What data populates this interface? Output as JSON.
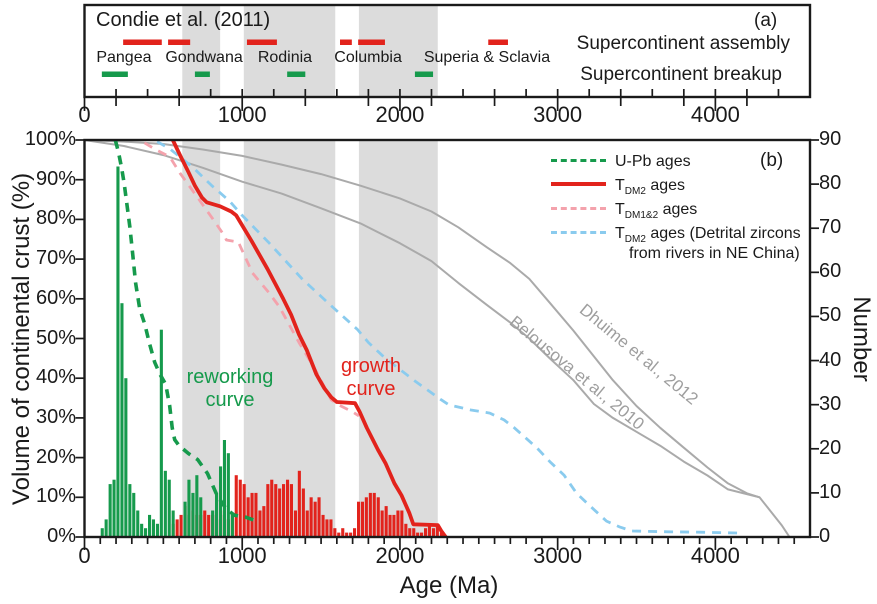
{
  "colors": {
    "red": "#e2231c",
    "green": "#169a4c",
    "pink": "#f4a2ac",
    "blue": "#8acbee",
    "gray_curve": "#aaaaaa",
    "gray_label": "#9e9e9e",
    "band": "#dcdcdc",
    "axis": "#1a1a1a"
  },
  "panel_a": {
    "corner_label": "(a)",
    "title": "Condie et al. (2011)",
    "legend": {
      "assembly": "Supercontinent assembly",
      "breakup": "Supercontinent breakup"
    },
    "supercontinents": [
      {
        "name": "Pangea",
        "label_age": 250
      },
      {
        "name": "Gondwana",
        "label_age": 758
      },
      {
        "name": "Rodinia",
        "label_age": 1271
      },
      {
        "name": "Columbia",
        "label_age": 1798
      },
      {
        "name": "Superia & Sclavia",
        "label_age": 2552
      }
    ],
    "assembly_intervals_ma": [
      [
        245,
        490
      ],
      [
        530,
        670
      ],
      [
        1030,
        1220
      ],
      [
        1620,
        1695
      ],
      [
        1735,
        1905
      ],
      [
        2560,
        2685
      ]
    ],
    "breakup_intervals_ma": [
      [
        110,
        275
      ],
      [
        700,
        795
      ],
      [
        1285,
        1400
      ],
      [
        2095,
        2210
      ]
    ]
  },
  "panel_b": {
    "corner_label": "(b)",
    "legend": [
      {
        "label": "U-Pb ages"
      },
      {
        "prefix": "T",
        "sub": "DM2",
        "suffix": " ages"
      },
      {
        "prefix": "T",
        "sub": "DM1&2",
        "suffix": " ages"
      },
      {
        "prefix": "T",
        "sub": "DM2",
        "suffix": " ages (Detrital zircons",
        "line2": "from rivers in NE China)"
      }
    ],
    "annotations": {
      "reworking": {
        "line1": "reworking",
        "line2": "curve"
      },
      "growth": {
        "line1": "growth",
        "line2": "curve"
      },
      "dhuime": "Dhuime et al., 2012",
      "belousova": "Belousova et al., 2010"
    }
  },
  "chart_data": {
    "type": "composite",
    "xlabel": "Age (Ma)",
    "x_range": [
      0,
      4600
    ],
    "age_ticks": [
      "0",
      "1000",
      "2000",
      "3000",
      "4000"
    ],
    "y_left": {
      "label": "Volume of continental crust (%)",
      "range": [
        0,
        100
      ],
      "ticks": [
        "0%",
        "10%",
        "20%",
        "30%",
        "40%",
        "50%",
        "60%",
        "70%",
        "80%",
        "90%",
        "100%"
      ]
    },
    "y_right": {
      "label": "Number",
      "range": [
        0,
        90
      ],
      "ticks": [
        "0",
        "10",
        "20",
        "30",
        "40",
        "50",
        "60",
        "70",
        "80",
        "90"
      ]
    },
    "shaded_bands_ma": [
      [
        620,
        860
      ],
      [
        1010,
        1590
      ],
      [
        1740,
        2240
      ]
    ],
    "series": [
      {
        "name": "U-Pb ages (reworking curve)",
        "type": "line",
        "style": "dashed",
        "color_key": "green",
        "points": [
          [
            195,
            100
          ],
          [
            215,
            97
          ],
          [
            235,
            93
          ],
          [
            252,
            89
          ],
          [
            268,
            84
          ],
          [
            288,
            78
          ],
          [
            306,
            71
          ],
          [
            324,
            64
          ],
          [
            350,
            57.5
          ],
          [
            383,
            53.5
          ],
          [
            410,
            49
          ],
          [
            445,
            44
          ],
          [
            478,
            41
          ],
          [
            515,
            38.5
          ],
          [
            540,
            33
          ],
          [
            556,
            27.5
          ],
          [
            572,
            24.5
          ],
          [
            600,
            23
          ],
          [
            660,
            21
          ],
          [
            718,
            19.5
          ],
          [
            780,
            16
          ],
          [
            840,
            10.5
          ],
          [
            900,
            7
          ],
          [
            950,
            5.5
          ],
          [
            1020,
            5
          ],
          [
            1090,
            4
          ]
        ]
      },
      {
        "name": "TDM2 ages (growth curve)",
        "type": "line",
        "style": "solid",
        "color_key": "red",
        "points": [
          [
            560,
            100
          ],
          [
            608,
            96
          ],
          [
            658,
            92
          ],
          [
            700,
            88.5
          ],
          [
            745,
            85.5
          ],
          [
            775,
            84.3
          ],
          [
            860,
            83.3
          ],
          [
            930,
            82
          ],
          [
            962,
            81
          ],
          [
            1060,
            74.5
          ],
          [
            1160,
            67.5
          ],
          [
            1260,
            60
          ],
          [
            1310,
            56
          ],
          [
            1360,
            51
          ],
          [
            1410,
            47
          ],
          [
            1470,
            41
          ],
          [
            1520,
            37.5
          ],
          [
            1565,
            35.2
          ],
          [
            1600,
            34
          ],
          [
            1715,
            33.7
          ],
          [
            1745,
            31.5
          ],
          [
            1790,
            27.5
          ],
          [
            1860,
            22
          ],
          [
            1910,
            18.5
          ],
          [
            1965,
            13.5
          ],
          [
            2010,
            10.5
          ],
          [
            2060,
            6
          ],
          [
            2085,
            3.2
          ],
          [
            2240,
            3
          ],
          [
            2262,
            1.5
          ],
          [
            2290,
            0
          ]
        ]
      },
      {
        "name": "TDM1&2 ages",
        "type": "line",
        "style": "dashed",
        "color_key": "pink",
        "points": [
          [
            380,
            99.3
          ],
          [
            450,
            97.6
          ],
          [
            540,
            95.8
          ],
          [
            605,
            91.7
          ],
          [
            710,
            85.9
          ],
          [
            810,
            80.3
          ],
          [
            885,
            76
          ],
          [
            900,
            74.8
          ],
          [
            975,
            74.3
          ],
          [
            1065,
            66.5
          ],
          [
            1170,
            61.5
          ],
          [
            1235,
            58
          ],
          [
            1360,
            49
          ],
          [
            1465,
            42
          ],
          [
            1565,
            34.5
          ],
          [
            1615,
            33.2
          ],
          [
            1700,
            31.5
          ],
          [
            1740,
            30.5
          ]
        ]
      },
      {
        "name": "TDM2 ages (Detrital zircons from rivers in NE China)",
        "type": "line",
        "style": "dashed",
        "color_key": "blue",
        "points": [
          [
            460,
            99.6
          ],
          [
            540,
            97.8
          ],
          [
            690,
            93
          ],
          [
            810,
            88.4
          ],
          [
            920,
            84.6
          ],
          [
            1000,
            81
          ],
          [
            1170,
            74.1
          ],
          [
            1380,
            65
          ],
          [
            1565,
            58.2
          ],
          [
            1730,
            52.3
          ],
          [
            1800,
            49
          ],
          [
            1905,
            45.1
          ],
          [
            2095,
            39.3
          ],
          [
            2260,
            34.6
          ],
          [
            2310,
            33.3
          ],
          [
            2450,
            32
          ],
          [
            2570,
            31.2
          ],
          [
            2660,
            29.5
          ],
          [
            2725,
            27.5
          ],
          [
            2870,
            22.4
          ],
          [
            2950,
            19
          ],
          [
            3040,
            15.6
          ],
          [
            3120,
            11
          ],
          [
            3200,
            8
          ],
          [
            3310,
            4
          ],
          [
            3395,
            2.5
          ],
          [
            3470,
            1.5
          ],
          [
            3700,
            1.3
          ],
          [
            3900,
            1.2
          ],
          [
            4140,
            1
          ]
        ]
      },
      {
        "name": "Dhuime et al., 2012",
        "type": "line",
        "style": "solid",
        "color_key": "gray_curve",
        "points": [
          [
            0,
            100
          ],
          [
            250,
            99.6
          ],
          [
            500,
            99
          ],
          [
            750,
            97.6
          ],
          [
            1000,
            96
          ],
          [
            1250,
            93.8
          ],
          [
            1500,
            91.4
          ],
          [
            1750,
            88.5
          ],
          [
            2000,
            85.3
          ],
          [
            2200,
            82
          ],
          [
            2370,
            78
          ],
          [
            2550,
            73
          ],
          [
            2700,
            69
          ],
          [
            2820,
            65
          ],
          [
            2950,
            59
          ],
          [
            3100,
            52
          ],
          [
            3230,
            45.5
          ],
          [
            3350,
            39.5
          ],
          [
            3500,
            33
          ],
          [
            3650,
            27.5
          ],
          [
            3800,
            22.5
          ],
          [
            3950,
            17.5
          ],
          [
            4080,
            13.5
          ],
          [
            4200,
            11
          ],
          [
            4280,
            10
          ],
          [
            4350,
            6.5
          ],
          [
            4420,
            3
          ],
          [
            4470,
            0
          ]
        ]
      },
      {
        "name": "Belousova et al., 2010",
        "type": "line",
        "style": "solid",
        "color_key": "gray_curve",
        "points": [
          [
            0,
            100
          ],
          [
            250,
            98.5
          ],
          [
            500,
            96.2
          ],
          [
            750,
            93
          ],
          [
            1000,
            89.5
          ],
          [
            1250,
            86.5
          ],
          [
            1500,
            82.8
          ],
          [
            1750,
            79
          ],
          [
            2000,
            74
          ],
          [
            2200,
            69.5
          ],
          [
            2370,
            64
          ],
          [
            2550,
            58.5
          ],
          [
            2700,
            54
          ],
          [
            2820,
            50
          ],
          [
            2950,
            45
          ],
          [
            3100,
            39.5
          ],
          [
            3230,
            33.5
          ],
          [
            3350,
            30
          ],
          [
            3500,
            26.5
          ],
          [
            3650,
            23
          ],
          [
            3800,
            19
          ],
          [
            3950,
            15.5
          ],
          [
            4080,
            12
          ],
          [
            4200,
            10.8
          ],
          [
            4280,
            10
          ]
        ]
      }
    ],
    "histograms": [
      {
        "name": "TDM2 ages",
        "color_key": "red",
        "bin_width_ma": 25,
        "axis": "number",
        "bins": [
          [
            550,
            3
          ],
          [
            575,
            4
          ],
          [
            600,
            5
          ],
          [
            625,
            7
          ],
          [
            650,
            5
          ],
          [
            675,
            6
          ],
          [
            700,
            5
          ],
          [
            725,
            5
          ],
          [
            750,
            6
          ],
          [
            775,
            5
          ],
          [
            800,
            5
          ],
          [
            825,
            4
          ],
          [
            850,
            6
          ],
          [
            875,
            5
          ],
          [
            900,
            4
          ],
          [
            925,
            5
          ],
          [
            950,
            14
          ],
          [
            975,
            13
          ],
          [
            1000,
            12
          ],
          [
            1025,
            9
          ],
          [
            1050,
            10
          ],
          [
            1075,
            10
          ],
          [
            1100,
            6
          ],
          [
            1125,
            7
          ],
          [
            1150,
            12
          ],
          [
            1175,
            13
          ],
          [
            1200,
            12
          ],
          [
            1225,
            11
          ],
          [
            1250,
            12
          ],
          [
            1275,
            13
          ],
          [
            1300,
            12
          ],
          [
            1325,
            6
          ],
          [
            1350,
            15
          ],
          [
            1375,
            11
          ],
          [
            1400,
            6
          ],
          [
            1425,
            9
          ],
          [
            1450,
            8
          ],
          [
            1475,
            9
          ],
          [
            1500,
            5
          ],
          [
            1525,
            4
          ],
          [
            1550,
            4
          ],
          [
            1575,
            2
          ],
          [
            1600,
            1
          ],
          [
            1625,
            2
          ],
          [
            1650,
            1
          ],
          [
            1675,
            1
          ],
          [
            1700,
            2
          ],
          [
            1725,
            8
          ],
          [
            1750,
            8
          ],
          [
            1775,
            9
          ],
          [
            1800,
            10
          ],
          [
            1825,
            10
          ],
          [
            1850,
            9
          ],
          [
            1875,
            6
          ],
          [
            1900,
            7
          ],
          [
            1925,
            5
          ],
          [
            1950,
            5
          ],
          [
            1975,
            6
          ],
          [
            2000,
            6
          ],
          [
            2025,
            3
          ],
          [
            2050,
            2
          ],
          [
            2075,
            2
          ],
          [
            2100,
            1
          ],
          [
            2125,
            1
          ],
          [
            2150,
            2
          ],
          [
            2175,
            3
          ],
          [
            2200,
            2
          ],
          [
            2225,
            3
          ],
          [
            2250,
            1
          ]
        ]
      },
      {
        "name": "U-Pb ages",
        "color_key": "green",
        "bin_width_ma": 25,
        "axis": "number",
        "bins": [
          [
            100,
            2
          ],
          [
            125,
            4
          ],
          [
            150,
            12
          ],
          [
            175,
            13
          ],
          [
            200,
            84
          ],
          [
            225,
            53
          ],
          [
            250,
            36
          ],
          [
            275,
            12
          ],
          [
            300,
            10
          ],
          [
            325,
            6
          ],
          [
            350,
            3
          ],
          [
            375,
            2
          ],
          [
            400,
            5
          ],
          [
            425,
            4
          ],
          [
            450,
            3
          ],
          [
            475,
            47
          ],
          [
            500,
            15
          ],
          [
            525,
            13
          ],
          [
            550,
            6
          ],
          [
            625,
            8
          ],
          [
            650,
            13
          ],
          [
            675,
            10
          ],
          [
            700,
            14
          ],
          [
            725,
            9
          ],
          [
            800,
            6
          ],
          [
            825,
            10
          ],
          [
            850,
            16
          ],
          [
            875,
            22
          ],
          [
            900,
            19
          ],
          [
            925,
            5
          ]
        ]
      }
    ]
  }
}
